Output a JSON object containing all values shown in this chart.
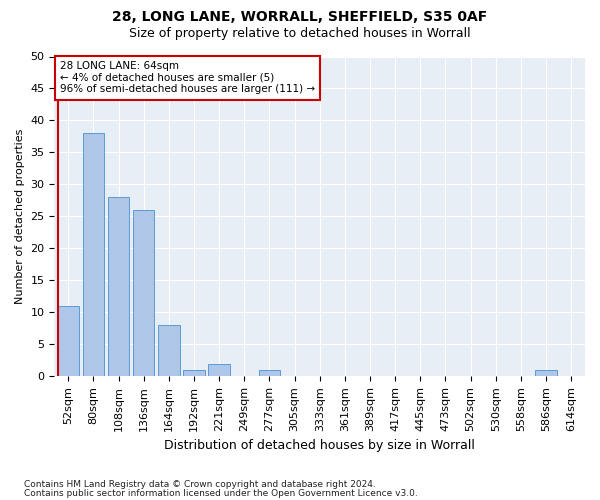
{
  "title1": "28, LONG LANE, WORRALL, SHEFFIELD, S35 0AF",
  "title2": "Size of property relative to detached houses in Worrall",
  "xlabel": "Distribution of detached houses by size in Worrall",
  "ylabel": "Number of detached properties",
  "categories": [
    "52sqm",
    "80sqm",
    "108sqm",
    "136sqm",
    "164sqm",
    "192sqm",
    "221sqm",
    "249sqm",
    "277sqm",
    "305sqm",
    "333sqm",
    "361sqm",
    "389sqm",
    "417sqm",
    "445sqm",
    "473sqm",
    "502sqm",
    "530sqm",
    "558sqm",
    "586sqm",
    "614sqm"
  ],
  "values": [
    11,
    38,
    28,
    26,
    8,
    1,
    2,
    0,
    1,
    0,
    0,
    0,
    0,
    0,
    0,
    0,
    0,
    0,
    0,
    1,
    0
  ],
  "bar_color": "#aec6e8",
  "bar_edge_color": "#5b9bd5",
  "highlight_color": "#cc0000",
  "ylim": [
    0,
    50
  ],
  "yticks": [
    0,
    5,
    10,
    15,
    20,
    25,
    30,
    35,
    40,
    45,
    50
  ],
  "annotation_line1": "28 LONG LANE: 64sqm",
  "annotation_line2": "← 4% of detached houses are smaller (5)",
  "annotation_line3": "96% of semi-detached houses are larger (111) →",
  "annotation_box_color": "#ffffff",
  "annotation_box_edge_color": "#cc0000",
  "bg_color": "#e8eef5",
  "footer1": "Contains HM Land Registry data © Crown copyright and database right 2024.",
  "footer2": "Contains public sector information licensed under the Open Government Licence v3.0.",
  "title1_fontsize": 10,
  "title2_fontsize": 9,
  "xlabel_fontsize": 9,
  "ylabel_fontsize": 8,
  "tick_fontsize": 8,
  "footer_fontsize": 6.5
}
